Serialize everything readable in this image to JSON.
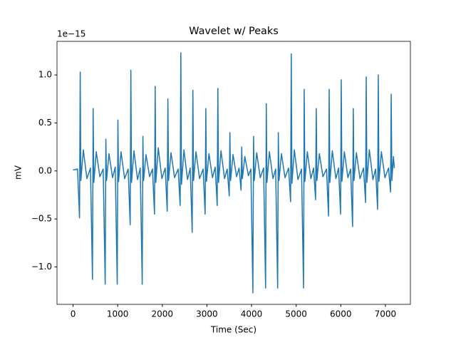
{
  "chart_data": {
    "type": "line",
    "title": "Wavelet w/ Peaks",
    "x_label": "Time (Sec)",
    "y_label": "mV",
    "y_offset_label": "1e−15",
    "x": [
      0,
      100,
      145,
      160,
      175,
      230,
      310,
      390,
      435,
      450,
      465,
      520,
      600,
      675,
      720,
      735,
      750,
      805,
      885,
      945,
      990,
      1005,
      1020,
      1075,
      1155,
      1235,
      1280,
      1295,
      1310,
      1365,
      1445,
      1505,
      1550,
      1565,
      1580,
      1635,
      1715,
      1780,
      1825,
      1840,
      1855,
      1910,
      1990,
      2065,
      2110,
      2125,
      2140,
      2195,
      2275,
      2355,
      2400,
      2415,
      2430,
      2485,
      2565,
      2625,
      2670,
      2685,
      2700,
      2755,
      2835,
      2915,
      2960,
      2975,
      2990,
      3045,
      3125,
      3185,
      3230,
      3245,
      3260,
      3315,
      3395,
      3455,
      3500,
      3515,
      3530,
      3585,
      3665,
      3720,
      3765,
      3780,
      3795,
      3850,
      3930,
      3985,
      4030,
      4045,
      4060,
      4115,
      4195,
      4270,
      4315,
      4330,
      4345,
      4400,
      4480,
      4540,
      4585,
      4600,
      4615,
      4670,
      4750,
      4830,
      4875,
      4890,
      4905,
      4960,
      5040,
      5120,
      5165,
      5180,
      5195,
      5250,
      5330,
      5390,
      5435,
      5450,
      5465,
      5520,
      5600,
      5680,
      5725,
      5740,
      5755,
      5810,
      5890,
      5950,
      5995,
      6010,
      6025,
      6080,
      6160,
      6220,
      6265,
      6280,
      6295,
      6350,
      6430,
      6510,
      6555,
      6570,
      6585,
      6640,
      6720,
      6780,
      6825,
      6840,
      6855,
      6910,
      6990,
      7070,
      7115,
      7130,
      7145,
      7180,
      7200
    ],
    "series": [
      {
        "color": "#1f77b4",
        "values": [
          0.01,
          0.02,
          -0.49,
          1.03,
          -0.1,
          0.22,
          -0.08,
          0.03,
          -1.13,
          0.65,
          -0.12,
          0.2,
          -0.06,
          0.02,
          -1.18,
          0.33,
          -0.1,
          0.18,
          -0.07,
          0.04,
          -1.18,
          0.53,
          -0.11,
          0.2,
          -0.08,
          0.02,
          -0.56,
          1.05,
          -0.12,
          0.21,
          -0.09,
          0.03,
          -1.18,
          0.36,
          -0.1,
          0.17,
          -0.06,
          0.02,
          -0.45,
          0.88,
          -0.12,
          0.24,
          -0.08,
          0.03,
          -0.42,
          0.75,
          -0.1,
          0.19,
          -0.07,
          0.02,
          -0.36,
          1.23,
          -0.14,
          0.22,
          -0.09,
          0.03,
          -0.64,
          0.84,
          -0.1,
          0.2,
          -0.08,
          0.02,
          -0.45,
          0.65,
          -0.11,
          0.18,
          -0.07,
          0.04,
          -0.36,
          0.86,
          -0.12,
          0.21,
          -0.08,
          0.02,
          -0.26,
          0.4,
          -0.1,
          0.17,
          -0.06,
          0.03,
          -0.2,
          0.25,
          -0.08,
          0.15,
          -0.05,
          0.02,
          -1.27,
          0.36,
          -0.1,
          0.19,
          -0.07,
          0.03,
          -1.22,
          0.7,
          -0.12,
          0.2,
          -0.08,
          0.02,
          -1.22,
          0.4,
          -0.1,
          0.18,
          -0.07,
          0.03,
          -0.32,
          1.22,
          -0.13,
          0.22,
          -0.09,
          0.02,
          -1.22,
          0.85,
          -0.11,
          0.2,
          -0.08,
          0.03,
          -0.3,
          0.65,
          -0.1,
          0.18,
          -0.06,
          0.02,
          -0.47,
          0.85,
          -0.12,
          0.21,
          -0.08,
          0.03,
          -0.45,
          0.95,
          -0.11,
          0.2,
          -0.07,
          0.02,
          -0.58,
          0.65,
          -0.1,
          0.19,
          -0.08,
          0.03,
          -0.33,
          0.98,
          -0.12,
          0.22,
          -0.09,
          0.02,
          -0.4,
          1.0,
          -0.11,
          0.2,
          -0.07,
          0.03,
          -0.22,
          0.8,
          -0.1,
          0.15,
          0.03
        ]
      }
    ],
    "xlim": [
      -360,
      7560
    ],
    "ylim": [
      -1.39,
      1.35
    ],
    "xticks": [
      0,
      1000,
      2000,
      3000,
      4000,
      5000,
      6000,
      7000
    ],
    "yticks": [
      {
        "value": -1,
        "label": "−1.0"
      },
      {
        "value": -0.5,
        "label": "−0.5"
      },
      {
        "value": 0,
        "label": "0.0"
      },
      0.5,
      {
        "value": 1,
        "label": "1.0"
      }
    ]
  }
}
